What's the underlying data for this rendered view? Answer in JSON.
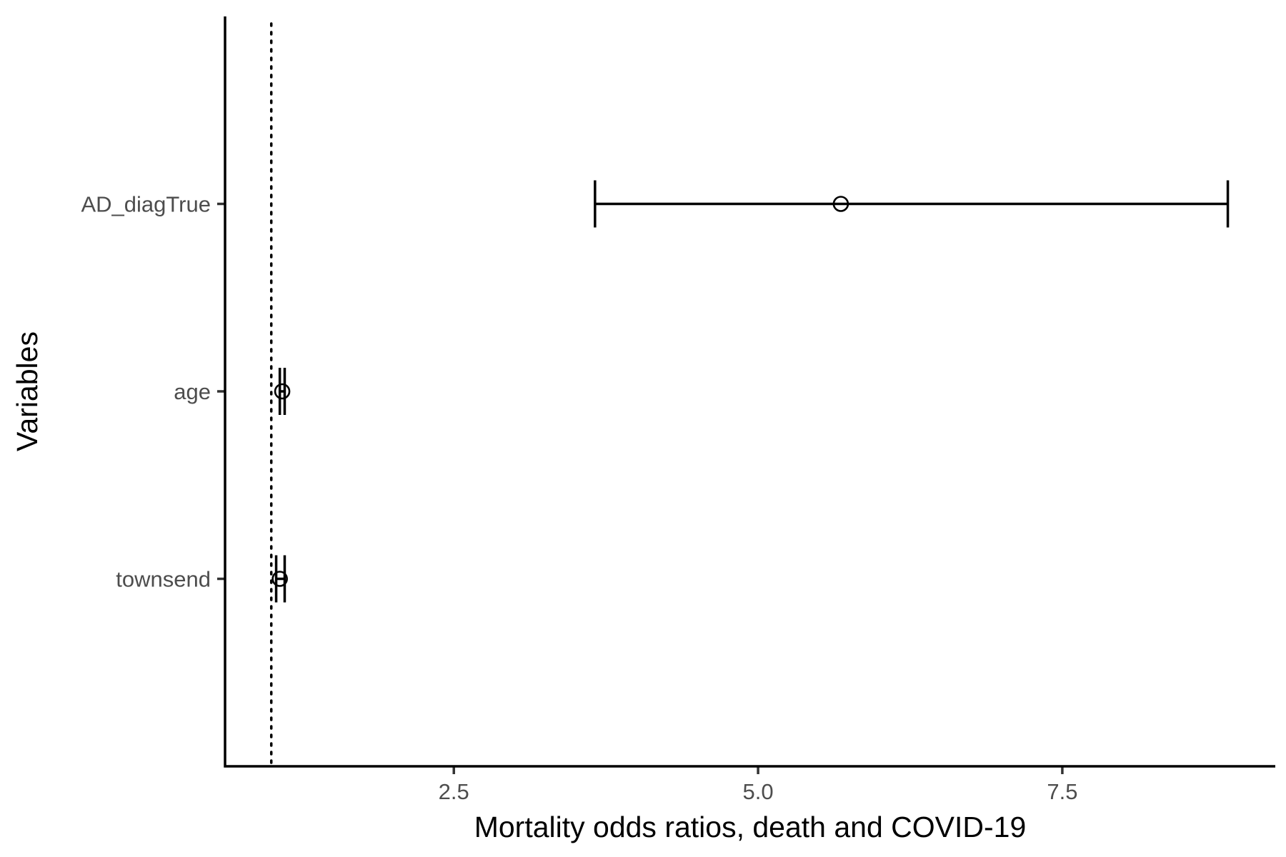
{
  "chart_data": {
    "type": "scatter",
    "subtype": "forest-plot",
    "title": "",
    "xlabel": "Mortality odds ratios, death and COVID-19",
    "ylabel": "Variables",
    "xlim": [
      0.62,
      9.25
    ],
    "x_ticks": [
      {
        "value": 2.5,
        "label": "2.5"
      },
      {
        "value": 5.0,
        "label": "5.0"
      },
      {
        "value": 7.5,
        "label": "7.5"
      }
    ],
    "reference_line": {
      "x": 1.0,
      "style": "dotted"
    },
    "grid": false,
    "legend": "none",
    "categories": [
      "AD_diagTrue",
      "age",
      "townsend"
    ],
    "estimates": [
      {
        "variable": "AD_diagTrue",
        "odds_ratio": 5.68,
        "ci_low": 3.66,
        "ci_high": 8.86
      },
      {
        "variable": "age",
        "odds_ratio": 1.09,
        "ci_low": 1.07,
        "ci_high": 1.11
      },
      {
        "variable": "townsend",
        "odds_ratio": 1.07,
        "ci_low": 1.04,
        "ci_high": 1.11
      }
    ],
    "colors": {
      "marks": "#000000",
      "tick_text": "#4d4d4d",
      "background": "#ffffff"
    }
  }
}
